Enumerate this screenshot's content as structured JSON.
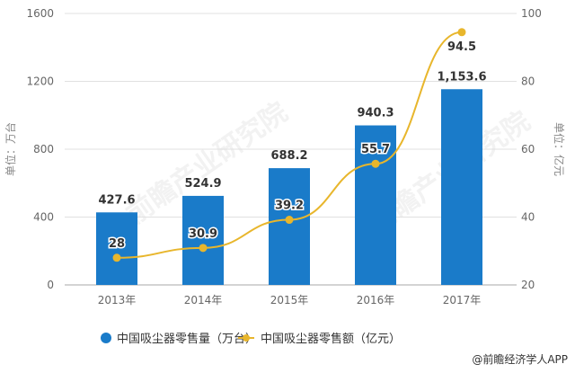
{
  "chart_data": {
    "type": "bar+line",
    "categories": [
      "2013年",
      "2014年",
      "2015年",
      "2016年",
      "2017年"
    ],
    "series": [
      {
        "name": "中国吸尘器零售量（万台）",
        "type": "bar",
        "axis": "left",
        "values": [
          427.6,
          524.9,
          688.2,
          940.3,
          1153.6
        ],
        "labels": [
          "427.6",
          "524.9",
          "688.2",
          "940.3",
          "1,153.6"
        ],
        "color": "#1a7bc9"
      },
      {
        "name": "中国吸尘器零售额（亿元）",
        "type": "line",
        "axis": "right",
        "values": [
          28,
          30.9,
          39.2,
          55.7,
          94.5
        ],
        "labels": [
          "28",
          "30.9",
          "39.2",
          "55.7",
          "94.5"
        ],
        "color": "#e8b62c"
      }
    ],
    "left_axis": {
      "label": "单位：万台",
      "ylim": [
        0,
        1600
      ],
      "ticks": [
        "0",
        "400",
        "800",
        "1200",
        "1600"
      ]
    },
    "right_axis": {
      "label": "单位：亿元",
      "ylim": [
        20,
        100
      ],
      "ticks": [
        "20",
        "40",
        "60",
        "80",
        "100"
      ]
    },
    "grid": true,
    "legend": "bottom"
  },
  "source": "@前瞻经济学人APP",
  "watermark": "前瞻产业研究院",
  "colors": {
    "grid": "#e0e0e0",
    "axis": "#999999"
  }
}
